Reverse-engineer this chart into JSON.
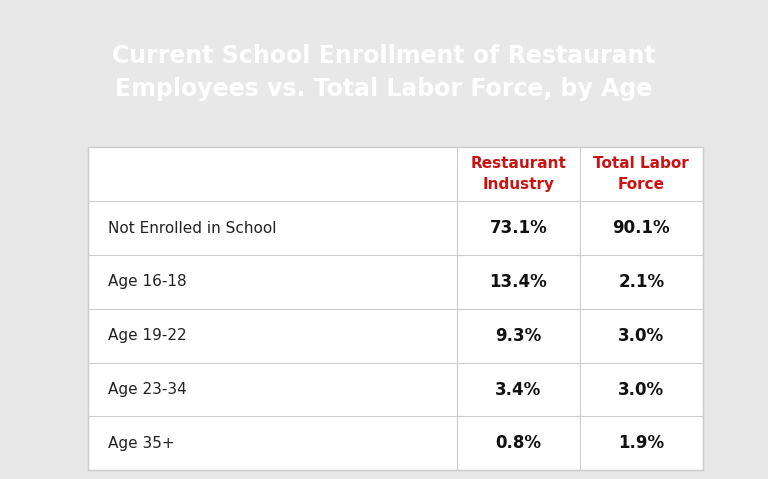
{
  "title_line1": "Current School Enrollment of Restaurant",
  "title_line2": "Employees vs. Total Labor Force, by Age",
  "title_bg_color": "#8B6F47",
  "title_text_color": "#FFFFFF",
  "top_bar_color": "#A52020",
  "bg_color": "#E8E8E8",
  "table_bg_color": "#FFFFFF",
  "col_header1": "Restaurant\nIndustry",
  "col_header2": "Total Labor\nForce",
  "col_header_color": "#CC1111",
  "rows": [
    {
      "label": "Not Enrolled in School",
      "val1": "73.1%",
      "val2": "90.1%"
    },
    {
      "label": "Age 16-18",
      "val1": "13.4%",
      "val2": "2.1%"
    },
    {
      "label": "Age 19-22",
      "val1": "9.3%",
      "val2": "3.0%"
    },
    {
      "label": "Age 23-34",
      "val1": "3.4%",
      "val2": "3.0%"
    },
    {
      "label": "Age 35+",
      "val1": "0.8%",
      "val2": "1.9%"
    }
  ],
  "label_color": "#222222",
  "value_color": "#111111",
  "line_color": "#CCCCCC",
  "value_font_size": 12,
  "label_font_size": 11,
  "header_font_size": 11,
  "title_font_size": 17
}
